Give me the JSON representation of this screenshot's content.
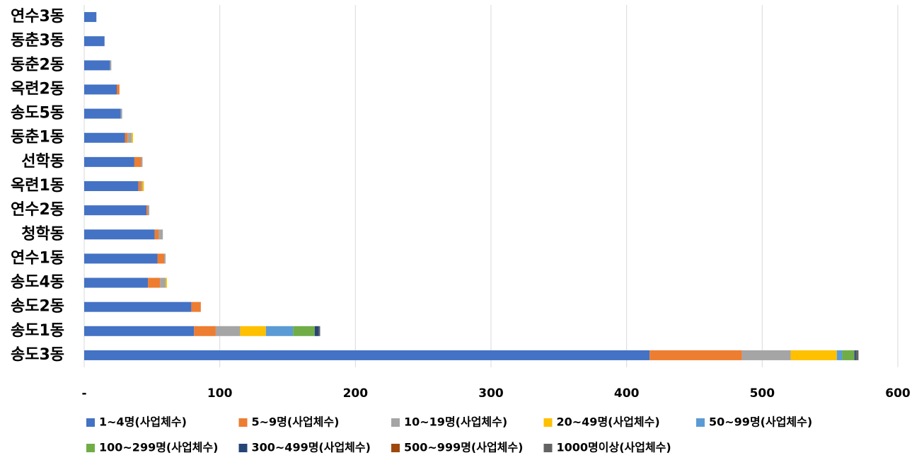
{
  "chart_data": {
    "type": "stacked-bar-horizontal",
    "categories": [
      "연수3동",
      "동춘3동",
      "동춘2동",
      "옥련2동",
      "송도5동",
      "동춘1동",
      "선학동",
      "옥련1동",
      "연수2동",
      "청학동",
      "연수1동",
      "송도4동",
      "송도2동",
      "송도1동",
      "송도3동"
    ],
    "series": [
      {
        "name": "1~4명(사업체수)",
        "color": "#4472c4",
        "values": [
          9,
          15,
          19,
          24,
          27,
          30,
          37,
          40,
          46,
          52,
          54,
          47,
          79,
          81,
          417
        ]
      },
      {
        "name": "5~9명(사업체수)",
        "color": "#ed7d31",
        "values": [
          0,
          0,
          0,
          2,
          0,
          2,
          5,
          2,
          1,
          3,
          5,
          9,
          7,
          16,
          68
        ]
      },
      {
        "name": "10~19명(사업체수)",
        "color": "#a5a5a5",
        "values": [
          0,
          0,
          1,
          0,
          1,
          3,
          1,
          1,
          1,
          3,
          1,
          4,
          0,
          18,
          36
        ]
      },
      {
        "name": "20~49명(사업체수)",
        "color": "#ffc000",
        "values": [
          0,
          0,
          0,
          0,
          0,
          1,
          0,
          1,
          0,
          0,
          0,
          1,
          0,
          19,
          34
        ]
      },
      {
        "name": "50~99명(사업체수)",
        "color": "#5b9bd5",
        "values": [
          0,
          0,
          0,
          0,
          0,
          0,
          0,
          0,
          0,
          0,
          0,
          0,
          0,
          20,
          4
        ]
      },
      {
        "name": "100~299명(사업체수)",
        "color": "#70ad47",
        "values": [
          0,
          0,
          0,
          0,
          0,
          0,
          0,
          0,
          0,
          0,
          0,
          0,
          0,
          16,
          9
        ]
      },
      {
        "name": "300~499명(사업체수)",
        "color": "#264478",
        "values": [
          0,
          0,
          0,
          0,
          0,
          0,
          0,
          0,
          0,
          0,
          0,
          0,
          0,
          3,
          1
        ]
      },
      {
        "name": "500~999명(사업체수)",
        "color": "#9e480e",
        "values": [
          0,
          0,
          0,
          0,
          0,
          0,
          0,
          0,
          0,
          0,
          0,
          0,
          0,
          0,
          0
        ]
      },
      {
        "name": "1000명이상(사업체수)",
        "color": "#636363",
        "values": [
          0,
          0,
          0,
          0,
          0,
          0,
          0,
          0,
          0,
          0,
          0,
          0,
          0,
          1,
          2
        ]
      }
    ],
    "xlim": [
      0,
      600
    ],
    "xticks": [
      {
        "value": 0,
        "label": "-"
      },
      100,
      200,
      300,
      400,
      500,
      600
    ],
    "grid": true,
    "legend": "bottom"
  }
}
